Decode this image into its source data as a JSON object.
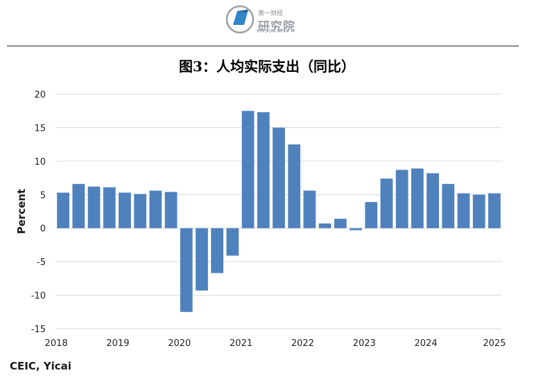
{
  "header": {
    "logo_top": "第一财经",
    "logo_name": "研究院",
    "logo_sub": "RESEARCH"
  },
  "colors": {
    "bar": "#4F81BD",
    "grid": "#d9d9d9"
  },
  "source_label": "CEIC, Yicai",
  "chart_data": {
    "type": "bar",
    "title": "图3：人均实际支出（同比）",
    "xlabel": "",
    "ylabel": "Percent",
    "ylim": [
      -15,
      20
    ],
    "yticks": [
      20,
      15,
      10,
      5,
      0,
      -5,
      -10,
      -15
    ],
    "grid": true,
    "x_tick_labels": [
      "2018",
      "2019",
      "2020",
      "2021",
      "2022",
      "2023",
      "2024",
      "2025"
    ],
    "categories": [
      "2018Q1",
      "2018Q2",
      "2018Q3",
      "2018Q4",
      "2019Q1",
      "2019Q2",
      "2019Q3",
      "2019Q4",
      "2020Q1",
      "2020Q2",
      "2020Q3",
      "2020Q4",
      "2021Q1",
      "2021Q2",
      "2021Q3",
      "2021Q4",
      "2022Q1",
      "2022Q2",
      "2022Q3",
      "2022Q4",
      "2023Q1",
      "2023Q2",
      "2023Q3",
      "2023Q4",
      "2024Q1",
      "2024Q2",
      "2024Q3",
      "2024Q4",
      "2025Q1"
    ],
    "values": [
      5.3,
      6.6,
      6.2,
      6.1,
      5.3,
      5.1,
      5.6,
      5.4,
      -12.5,
      -9.3,
      -6.7,
      -4.1,
      17.5,
      17.3,
      15.0,
      12.5,
      5.6,
      0.7,
      1.4,
      -0.3,
      3.9,
      7.4,
      8.7,
      8.9,
      8.2,
      6.6,
      5.2,
      5.0,
      5.2
    ]
  }
}
